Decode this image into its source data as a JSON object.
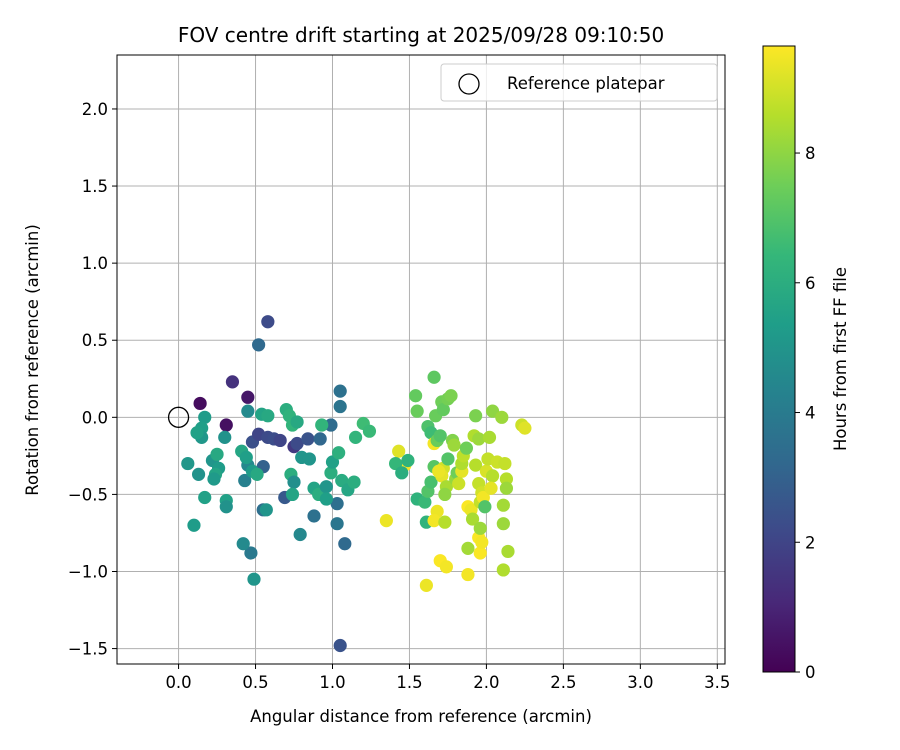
{
  "chart_data": {
    "type": "scatter",
    "title": "FOV centre drift starting at 2025/09/28 09:10:50",
    "xlabel": "Angular distance from reference (arcmin)",
    "ylabel": "Rotation from reference (arcmin)",
    "xlim": [
      -0.4,
      3.55
    ],
    "ylim": [
      -1.6,
      2.35
    ],
    "xticks": [
      0.0,
      0.5,
      1.0,
      1.5,
      2.0,
      2.5,
      3.0,
      3.5
    ],
    "xtick_labels": [
      "0.0",
      "0.5",
      "1.0",
      "1.5",
      "2.0",
      "2.5",
      "3.0",
      "3.5"
    ],
    "yticks": [
      -1.5,
      -1.0,
      -0.5,
      0.0,
      0.5,
      1.0,
      1.5,
      2.0
    ],
    "ytick_labels": [
      "−1.5",
      "−1.0",
      "−0.5",
      "0.0",
      "0.5",
      "1.0",
      "1.5",
      "2.0"
    ],
    "grid": true,
    "legend": {
      "placement": "top-right",
      "entries": [
        "Reference platepar"
      ]
    },
    "reference_point": {
      "x": 0.0,
      "y": 0.0,
      "label": "Reference platepar"
    },
    "colorbar": {
      "label": "Hours from first FF file",
      "range": [
        0,
        9.65
      ],
      "ticks": [
        0,
        2,
        4,
        6,
        8
      ],
      "tick_labels": [
        "0",
        "2",
        "4",
        "6",
        "8"
      ],
      "colormap": "viridis"
    },
    "series": [
      {
        "points": [
          [
            0.14,
            0.09,
            0.3
          ],
          [
            0.31,
            -0.05,
            0.4
          ],
          [
            0.35,
            0.23,
            1.4
          ],
          [
            0.45,
            0.13,
            0.6
          ],
          [
            0.58,
            0.62,
            2.2
          ],
          [
            0.52,
            0.47,
            3.3
          ],
          [
            0.48,
            -0.16,
            2.4
          ],
          [
            0.52,
            -0.11,
            2.0
          ],
          [
            0.58,
            -0.13,
            2.2
          ],
          [
            0.62,
            -0.14,
            2.3
          ],
          [
            0.66,
            -0.15,
            2.0
          ],
          [
            0.75,
            -0.19,
            1.6
          ],
          [
            0.77,
            -0.17,
            2.2
          ],
          [
            0.84,
            -0.14,
            2.5
          ],
          [
            0.55,
            -0.32,
            3.0
          ],
          [
            0.92,
            -0.14,
            3.2
          ],
          [
            0.99,
            -0.05,
            3.4
          ],
          [
            1.05,
            0.17,
            3.6
          ],
          [
            1.05,
            0.07,
            3.7
          ],
          [
            0.69,
            -0.52,
            2.7
          ],
          [
            0.88,
            -0.64,
            3.6
          ],
          [
            1.03,
            -0.56,
            3.5
          ],
          [
            1.03,
            -0.69,
            3.8
          ],
          [
            1.08,
            -0.82,
            3.3
          ],
          [
            1.05,
            -1.48,
            2.5
          ],
          [
            0.55,
            -0.6,
            3.5
          ],
          [
            0.47,
            -0.88,
            3.9
          ],
          [
            0.42,
            -0.82,
            4.6
          ],
          [
            0.43,
            -0.41,
            4.2
          ],
          [
            0.45,
            -0.31,
            4.5
          ],
          [
            0.45,
            0.04,
            4.6
          ],
          [
            0.3,
            -0.13,
            4.9
          ],
          [
            0.17,
            0.0,
            5.3
          ],
          [
            0.15,
            -0.07,
            5.4
          ],
          [
            0.15,
            -0.13,
            5.1
          ],
          [
            0.12,
            -0.1,
            5.5
          ],
          [
            0.06,
            -0.3,
            5.1
          ],
          [
            0.13,
            -0.37,
            4.9
          ],
          [
            0.22,
            -0.28,
            5.0
          ],
          [
            0.26,
            -0.33,
            5.3
          ],
          [
            0.24,
            -0.37,
            5.6
          ],
          [
            0.23,
            -0.4,
            5.2
          ],
          [
            0.25,
            -0.24,
            5.8
          ],
          [
            0.17,
            -0.52,
            5.5
          ],
          [
            0.1,
            -0.7,
            5.3
          ],
          [
            0.31,
            -0.54,
            5.5
          ],
          [
            0.31,
            -0.58,
            4.9
          ],
          [
            0.41,
            -0.22,
            5.7
          ],
          [
            0.44,
            -0.26,
            5.4
          ],
          [
            0.48,
            -0.35,
            5.3
          ],
          [
            0.51,
            -0.37,
            5.8
          ],
          [
            0.49,
            -1.05,
            5.0
          ],
          [
            0.57,
            -0.6,
            5.0
          ],
          [
            0.54,
            0.02,
            5.6
          ],
          [
            0.58,
            0.01,
            5.8
          ],
          [
            0.7,
            0.05,
            6.0
          ],
          [
            0.72,
            0.01,
            6.2
          ],
          [
            0.74,
            -0.05,
            6.3
          ],
          [
            0.77,
            -0.03,
            5.8
          ],
          [
            0.73,
            -0.37,
            6.0
          ],
          [
            0.75,
            -0.42,
            4.8
          ],
          [
            0.74,
            -0.5,
            5.6
          ],
          [
            0.8,
            -0.26,
            5.0
          ],
          [
            0.79,
            -0.76,
            4.5
          ],
          [
            0.85,
            -0.27,
            5.0
          ],
          [
            0.93,
            -0.05,
            6.3
          ],
          [
            0.88,
            -0.46,
            5.6
          ],
          [
            0.91,
            -0.5,
            6.0
          ],
          [
            0.96,
            -0.45,
            5.0
          ],
          [
            0.99,
            -0.36,
            6.0
          ],
          [
            0.96,
            -0.53,
            5.4
          ],
          [
            1.0,
            -0.29,
            5.5
          ],
          [
            1.04,
            -0.23,
            6.1
          ],
          [
            1.06,
            -0.41,
            5.9
          ],
          [
            1.1,
            -0.47,
            5.7
          ],
          [
            1.14,
            -0.42,
            6.0
          ],
          [
            1.15,
            -0.13,
            6.3
          ],
          [
            1.2,
            -0.04,
            6.6
          ],
          [
            1.24,
            -0.09,
            6.5
          ],
          [
            1.35,
            -0.67,
            9.4
          ],
          [
            1.43,
            -0.22,
            9.2
          ],
          [
            1.47,
            -0.31,
            9.6
          ],
          [
            1.41,
            -0.3,
            6.4
          ],
          [
            1.45,
            -0.36,
            6.0
          ],
          [
            1.49,
            -0.28,
            6.2
          ],
          [
            1.54,
            0.14,
            7.3
          ],
          [
            1.55,
            0.04,
            7.4
          ],
          [
            1.55,
            -0.53,
            6.2
          ],
          [
            1.6,
            -0.55,
            6.5
          ],
          [
            1.61,
            -0.68,
            6.2
          ],
          [
            1.62,
            -0.06,
            6.9
          ],
          [
            1.64,
            -0.1,
            6.6
          ],
          [
            1.66,
            0.26,
            7.2
          ],
          [
            1.67,
            0.01,
            7.4
          ],
          [
            1.62,
            -0.48,
            7.0
          ],
          [
            1.64,
            -0.42,
            6.8
          ],
          [
            1.66,
            -0.32,
            7.1
          ],
          [
            1.66,
            -0.17,
            9.5
          ],
          [
            1.68,
            -0.15,
            7.4
          ],
          [
            1.7,
            -0.12,
            7.0
          ],
          [
            1.71,
            0.1,
            7.5
          ],
          [
            1.72,
            0.05,
            7.3
          ],
          [
            1.75,
            0.12,
            7.6
          ],
          [
            1.77,
            0.14,
            7.7
          ],
          [
            1.72,
            -0.33,
            9.0
          ],
          [
            1.71,
            -0.38,
            9.3
          ],
          [
            1.74,
            -0.45,
            8.4
          ],
          [
            1.73,
            -0.5,
            8.0
          ],
          [
            1.69,
            -0.35,
            9.4
          ],
          [
            1.68,
            -0.61,
            9.4
          ],
          [
            1.66,
            -0.67,
            9.5
          ],
          [
            1.7,
            -0.93,
            9.6
          ],
          [
            1.74,
            -0.97,
            9.5
          ],
          [
            1.61,
            -1.09,
            9.4
          ],
          [
            1.73,
            -0.68,
            8.6
          ],
          [
            1.75,
            -0.27,
            7.0
          ],
          [
            1.78,
            -0.15,
            7.8
          ],
          [
            1.79,
            -0.18,
            8.2
          ],
          [
            1.8,
            -0.4,
            8.1
          ],
          [
            1.81,
            -0.36,
            7.5
          ],
          [
            1.84,
            -0.35,
            9.3
          ],
          [
            1.82,
            -0.43,
            8.9
          ],
          [
            1.84,
            -0.3,
            8.5
          ],
          [
            1.85,
            -0.25,
            8.7
          ],
          [
            1.87,
            -0.2,
            7.5
          ],
          [
            1.88,
            -0.58,
            9.6
          ],
          [
            1.9,
            -0.6,
            9.4
          ],
          [
            1.88,
            -0.85,
            8.3
          ],
          [
            1.88,
            -1.02,
            9.5
          ],
          [
            1.91,
            -0.66,
            8.4
          ],
          [
            1.93,
            0.01,
            7.7
          ],
          [
            1.92,
            -0.12,
            8.5
          ],
          [
            1.95,
            -0.14,
            8.2
          ],
          [
            1.93,
            -0.31,
            8.6
          ],
          [
            1.95,
            -0.43,
            8.8
          ],
          [
            1.96,
            -0.55,
            8.8
          ],
          [
            1.95,
            -0.78,
            9.6
          ],
          [
            1.96,
            -0.72,
            8.2
          ],
          [
            1.97,
            -0.49,
            9.0
          ],
          [
            1.98,
            -0.52,
            9.5
          ],
          [
            1.99,
            -0.58,
            7.0
          ],
          [
            2.0,
            -0.35,
            9.1
          ],
          [
            2.01,
            -0.27,
            8.8
          ],
          [
            2.02,
            -0.13,
            8.4
          ],
          [
            2.04,
            0.04,
            8.0
          ],
          [
            2.04,
            -0.38,
            8.6
          ],
          [
            2.03,
            -0.46,
            9.3
          ],
          [
            2.07,
            -0.29,
            8.9
          ],
          [
            2.1,
            0.0,
            8.2
          ],
          [
            2.11,
            -0.57,
            8.3
          ],
          [
            2.11,
            -0.69,
            8.2
          ],
          [
            2.11,
            -0.99,
            8.5
          ],
          [
            2.12,
            -0.3,
            8.8
          ],
          [
            2.13,
            -0.4,
            8.6
          ],
          [
            2.13,
            -0.46,
            8.2
          ],
          [
            2.14,
            -0.87,
            8.4
          ],
          [
            2.23,
            -0.05,
            8.9
          ],
          [
            2.25,
            -0.07,
            9.2
          ],
          [
            1.96,
            -0.88,
            9.6
          ],
          [
            1.97,
            -0.81,
            9.5
          ]
        ]
      }
    ]
  }
}
